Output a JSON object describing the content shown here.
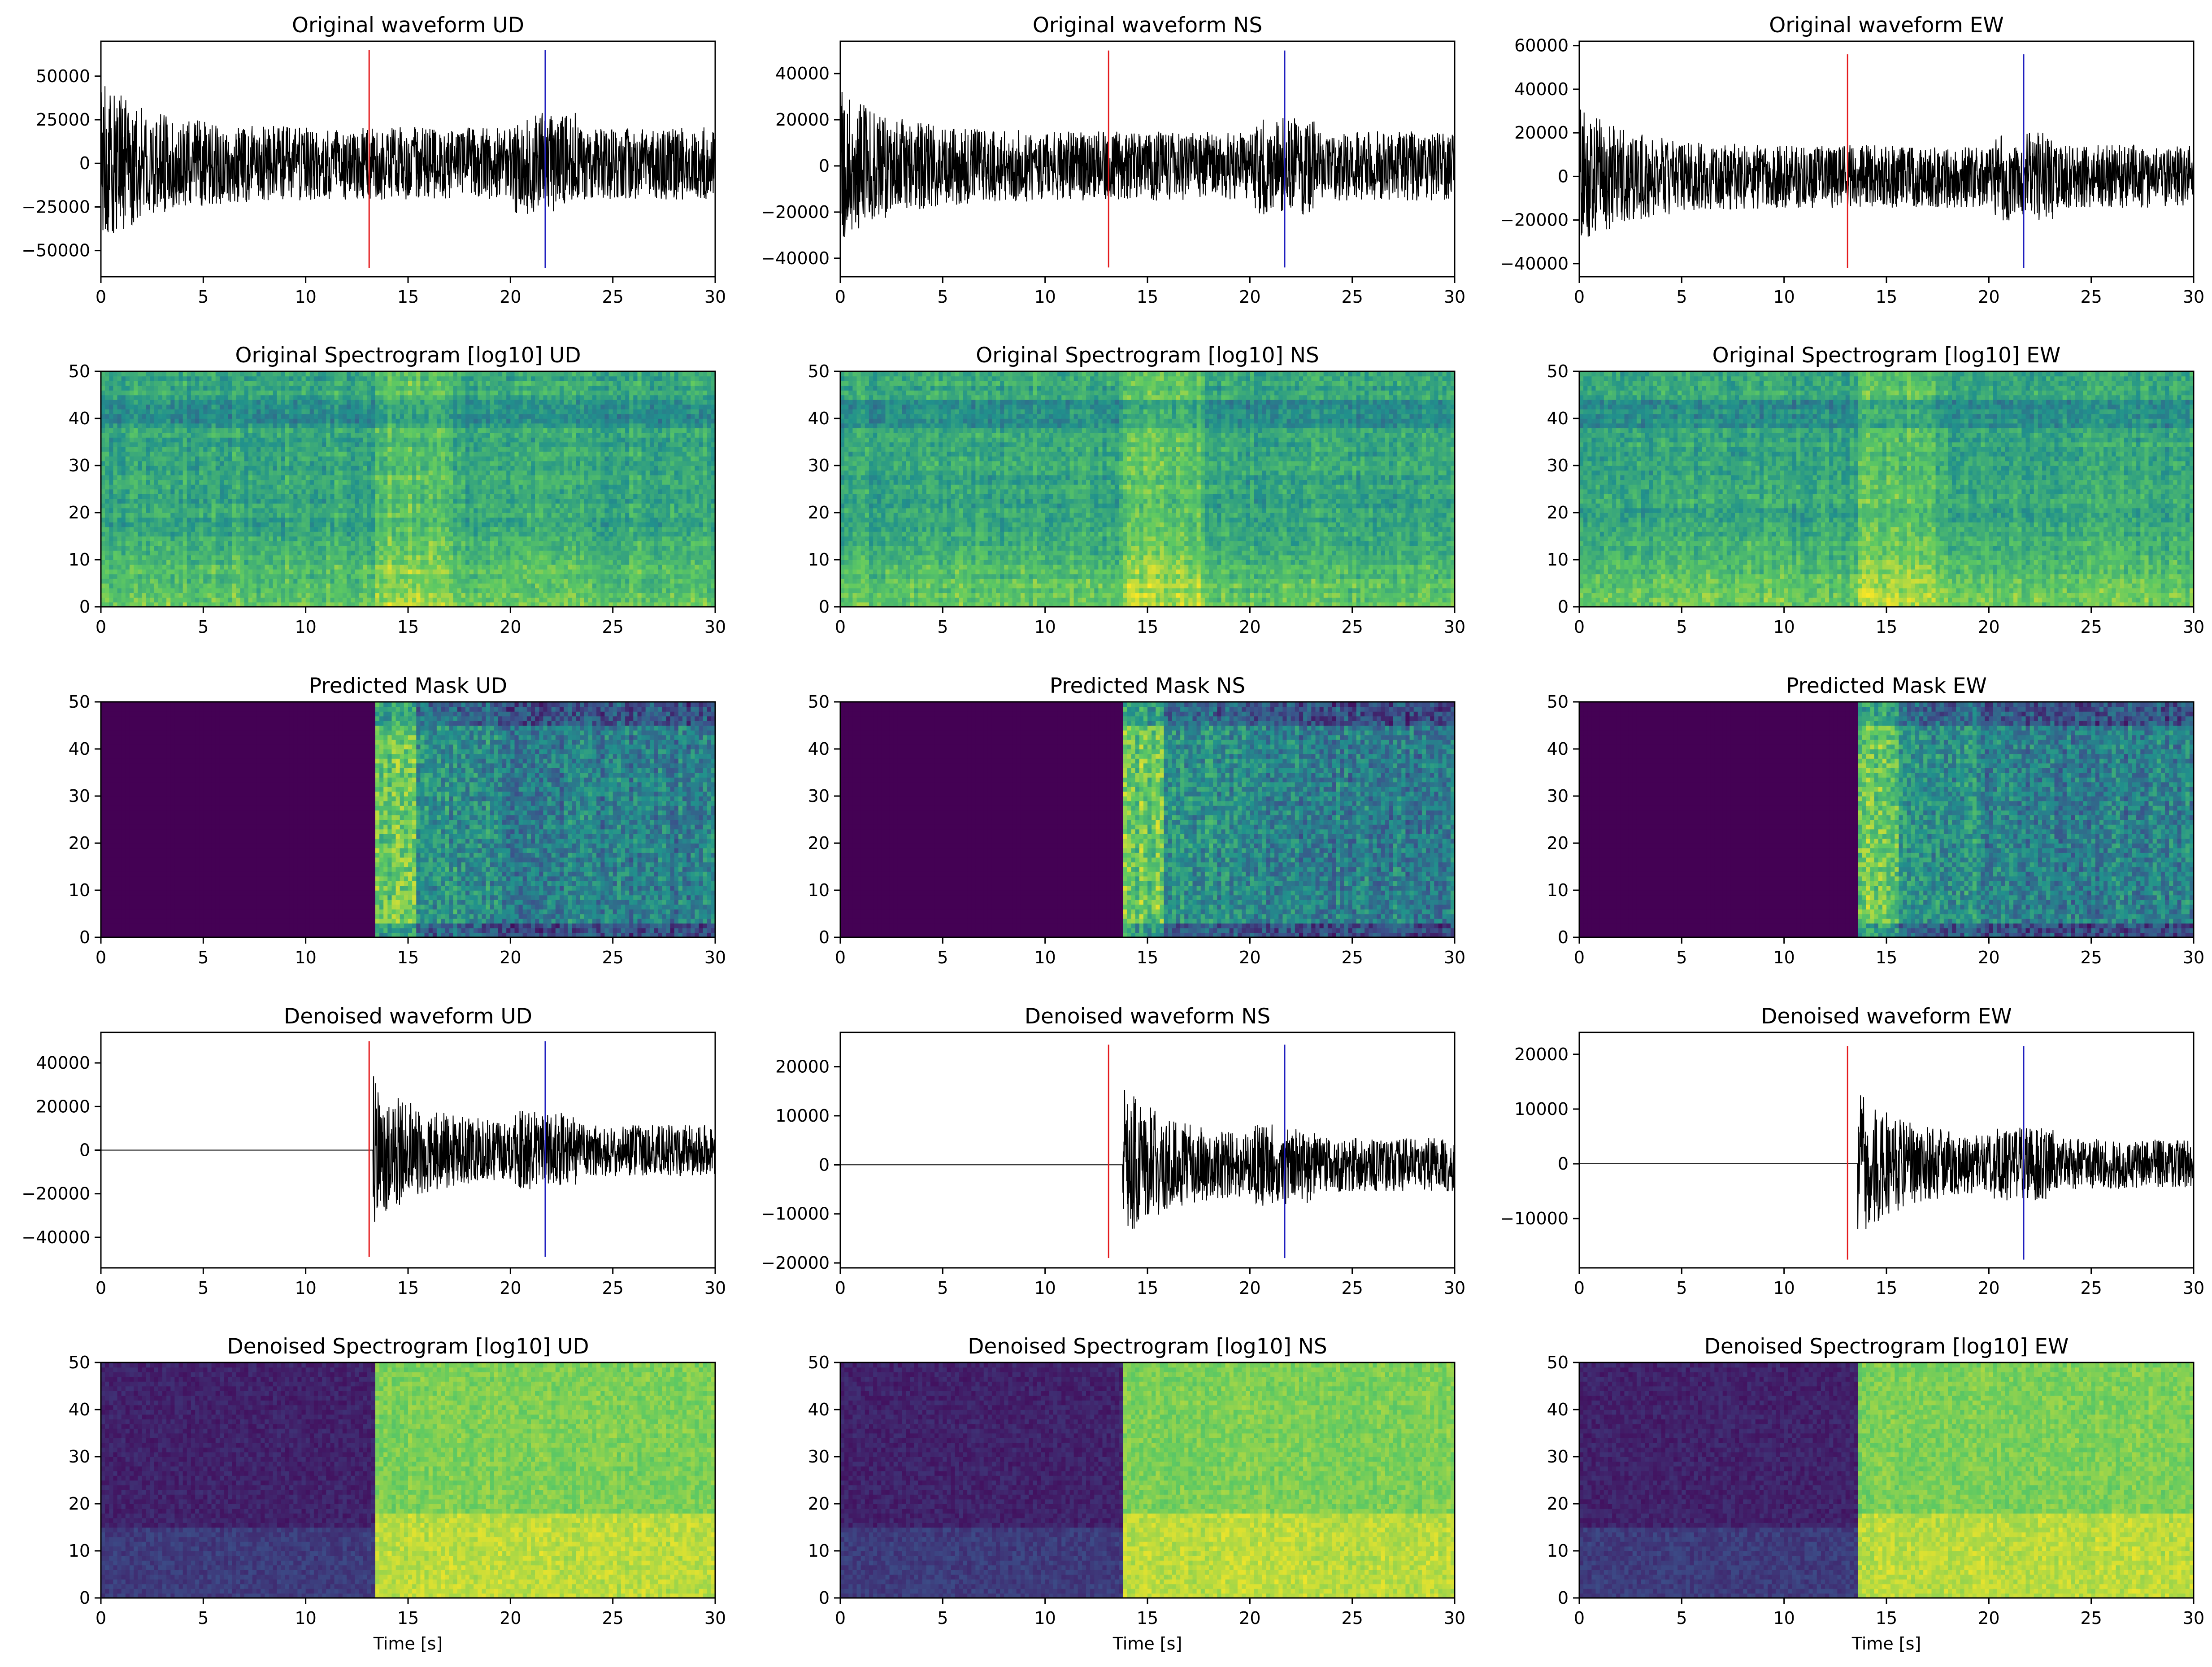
{
  "figure": {
    "rows": [
      "waveform",
      "spectrogram",
      "mask",
      "waveform",
      "spectrogram"
    ],
    "components": [
      "UD",
      "NS",
      "EW"
    ]
  },
  "colors": {
    "trace": "#000000",
    "p_pick": "#e41a1c",
    "s_pick": "#1f1fbf",
    "viridis": [
      "#440154",
      "#3b528b",
      "#21918c",
      "#5ec962",
      "#fde725"
    ]
  },
  "chart_data": [
    {
      "type": "line",
      "component": "UD",
      "title": "Original waveform UD",
      "xlim": [
        0,
        30
      ],
      "ylim": [
        -65000,
        70000
      ],
      "xticks": [
        0,
        5,
        10,
        15,
        20,
        25,
        30
      ],
      "yticks": [
        50000,
        25000,
        0,
        -25000,
        -50000
      ],
      "p_pick": 13.1,
      "s_pick": 21.7,
      "pick_range": [
        -60000,
        65000
      ],
      "onset": 0,
      "noise_amp": 12000,
      "signal_amp": 30000,
      "seed": 11,
      "xlabel": ""
    },
    {
      "type": "line",
      "component": "NS",
      "title": "Original waveform NS",
      "xlim": [
        0,
        30
      ],
      "ylim": [
        -48000,
        54000
      ],
      "xticks": [
        0,
        5,
        10,
        15,
        20,
        25,
        30
      ],
      "yticks": [
        40000,
        20000,
        0,
        -20000,
        -40000
      ],
      "p_pick": 13.1,
      "s_pick": 21.7,
      "pick_range": [
        -44000,
        50000
      ],
      "onset": 0,
      "noise_amp": 10000,
      "signal_amp": 20000,
      "seed": 23,
      "xlabel": ""
    },
    {
      "type": "line",
      "component": "EW",
      "title": "Original waveform EW",
      "xlim": [
        0,
        30
      ],
      "ylim": [
        -46000,
        62000
      ],
      "xticks": [
        0,
        5,
        10,
        15,
        20,
        25,
        30
      ],
      "yticks": [
        60000,
        40000,
        20000,
        0,
        -20000,
        -40000
      ],
      "p_pick": 13.1,
      "s_pick": 21.7,
      "pick_range": [
        -42000,
        56000
      ],
      "onset": 0,
      "noise_amp": 9000,
      "signal_amp": 20000,
      "seed": 37,
      "xlabel": ""
    },
    {
      "type": "heatmap",
      "component": "UD",
      "title": "Original Spectrogram [log10] UD",
      "xlim": [
        0,
        30
      ],
      "ylim": [
        0,
        50
      ],
      "xticks": [
        0,
        5,
        10,
        15,
        20,
        25,
        30
      ],
      "yticks": [
        50,
        40,
        30,
        20,
        10,
        0
      ],
      "mode": "original",
      "onset": 13.3,
      "seed": 5,
      "xlabel": ""
    },
    {
      "type": "heatmap",
      "component": "NS",
      "title": "Original Spectrogram [log10] NS",
      "xlim": [
        0,
        30
      ],
      "ylim": [
        0,
        50
      ],
      "xticks": [
        0,
        5,
        10,
        15,
        20,
        25,
        30
      ],
      "yticks": [
        50,
        40,
        30,
        20,
        10,
        0
      ],
      "mode": "original",
      "onset": 13.8,
      "seed": 8,
      "xlabel": ""
    },
    {
      "type": "heatmap",
      "component": "EW",
      "title": "Original Spectrogram [log10] EW",
      "xlim": [
        0,
        30
      ],
      "ylim": [
        0,
        50
      ],
      "xticks": [
        0,
        5,
        10,
        15,
        20,
        25,
        30
      ],
      "yticks": [
        50,
        40,
        30,
        20,
        10,
        0
      ],
      "mode": "original",
      "onset": 13.5,
      "seed": 13,
      "xlabel": ""
    },
    {
      "type": "heatmap",
      "component": "UD",
      "title": "Predicted Mask UD",
      "xlim": [
        0,
        30
      ],
      "ylim": [
        0,
        50
      ],
      "xticks": [
        0,
        5,
        10,
        15,
        20,
        25,
        30
      ],
      "yticks": [
        50,
        40,
        30,
        20,
        10,
        0
      ],
      "mode": "mask",
      "onset": 13.4,
      "seed": 17,
      "xlabel": ""
    },
    {
      "type": "heatmap",
      "component": "NS",
      "title": "Predicted Mask NS",
      "xlim": [
        0,
        30
      ],
      "ylim": [
        0,
        50
      ],
      "xticks": [
        0,
        5,
        10,
        15,
        20,
        25,
        30
      ],
      "yticks": [
        50,
        40,
        30,
        20,
        10,
        0
      ],
      "mode": "mask",
      "onset": 13.8,
      "seed": 19,
      "xlabel": ""
    },
    {
      "type": "heatmap",
      "component": "EW",
      "title": "Predicted Mask EW",
      "xlim": [
        0,
        30
      ],
      "ylim": [
        0,
        50
      ],
      "xticks": [
        0,
        5,
        10,
        15,
        20,
        25,
        30
      ],
      "yticks": [
        50,
        40,
        30,
        20,
        10,
        0
      ],
      "mode": "mask",
      "onset": 13.6,
      "seed": 29,
      "xlabel": ""
    },
    {
      "type": "line",
      "component": "UD",
      "title": "Denoised waveform UD",
      "xlim": [
        0,
        30
      ],
      "ylim": [
        -54000,
        54000
      ],
      "xticks": [
        0,
        5,
        10,
        15,
        20,
        25,
        30
      ],
      "yticks": [
        40000,
        20000,
        0,
        -20000,
        -40000
      ],
      "p_pick": 13.1,
      "s_pick": 21.7,
      "pick_range": [
        -49000,
        50000
      ],
      "onset": 13.3,
      "noise_amp": 0,
      "signal_amp": 26000,
      "seed": 41,
      "xlabel": ""
    },
    {
      "type": "line",
      "component": "NS",
      "title": "Denoised waveform NS",
      "xlim": [
        0,
        30
      ],
      "ylim": [
        -21000,
        27000
      ],
      "xticks": [
        0,
        5,
        10,
        15,
        20,
        25,
        30
      ],
      "yticks": [
        20000,
        10000,
        0,
        -10000,
        -20000
      ],
      "p_pick": 13.1,
      "s_pick": 21.7,
      "pick_range": [
        -19000,
        24500
      ],
      "onset": 13.8,
      "noise_amp": 0,
      "signal_amp": 12000,
      "seed": 43,
      "xlabel": ""
    },
    {
      "type": "line",
      "component": "EW",
      "title": "Denoised waveform EW",
      "xlim": [
        0,
        30
      ],
      "ylim": [
        -19000,
        24000
      ],
      "xticks": [
        0,
        5,
        10,
        15,
        20,
        25,
        30
      ],
      "yticks": [
        20000,
        10000,
        0,
        -10000
      ],
      "p_pick": 13.1,
      "s_pick": 21.7,
      "pick_range": [
        -17500,
        21500
      ],
      "onset": 13.6,
      "noise_amp": 0,
      "signal_amp": 10000,
      "seed": 47,
      "xlabel": ""
    },
    {
      "type": "heatmap",
      "component": "UD",
      "title": "Denoised Spectrogram [log10] UD",
      "xlim": [
        0,
        30
      ],
      "ylim": [
        0,
        50
      ],
      "xticks": [
        0,
        5,
        10,
        15,
        20,
        25,
        30
      ],
      "yticks": [
        50,
        40,
        30,
        20,
        10,
        0
      ],
      "mode": "denoised",
      "onset": 13.4,
      "seed": 53,
      "xlabel": "Time [s]"
    },
    {
      "type": "heatmap",
      "component": "NS",
      "title": "Denoised Spectrogram [log10] NS",
      "xlim": [
        0,
        30
      ],
      "ylim": [
        0,
        50
      ],
      "xticks": [
        0,
        5,
        10,
        15,
        20,
        25,
        30
      ],
      "yticks": [
        50,
        40,
        30,
        20,
        10,
        0
      ],
      "mode": "denoised",
      "onset": 13.8,
      "seed": 59,
      "xlabel": "Time [s]"
    },
    {
      "type": "heatmap",
      "component": "EW",
      "title": "Denoised Spectrogram [log10] EW",
      "xlim": [
        0,
        30
      ],
      "ylim": [
        0,
        50
      ],
      "xticks": [
        0,
        5,
        10,
        15,
        20,
        25,
        30
      ],
      "yticks": [
        50,
        40,
        30,
        20,
        10,
        0
      ],
      "mode": "denoised",
      "onset": 13.6,
      "seed": 61,
      "xlabel": "Time [s]"
    }
  ]
}
